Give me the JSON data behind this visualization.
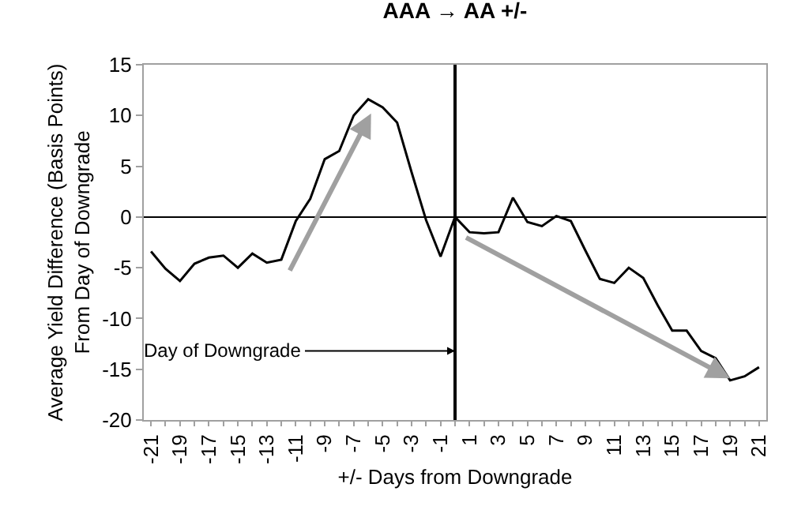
{
  "chart_data": {
    "type": "line",
    "title": "AAA → AA +/-",
    "xlabel": "+/- Days from Downgrade",
    "ylabel": "Average Yield Difference (Basis Points)\nFrom Day of Downgrade",
    "x": [
      -21,
      -20,
      -19,
      -18,
      -17,
      -16,
      -15,
      -14,
      -13,
      -12,
      -11,
      -10,
      -9,
      -8,
      -7,
      -6,
      -5,
      -4,
      -3,
      -2,
      -1,
      0,
      1,
      2,
      3,
      4,
      5,
      6,
      7,
      8,
      9,
      10,
      11,
      12,
      13,
      14,
      15,
      16,
      17,
      18,
      19,
      20,
      21
    ],
    "series": [
      {
        "color": "#000000",
        "values": [
          -3.4,
          -5.1,
          -6.3,
          -4.6,
          -4.0,
          -3.8,
          -5.0,
          -3.6,
          -4.5,
          -4.2,
          -0.4,
          1.8,
          5.7,
          6.5,
          10.0,
          11.6,
          10.8,
          9.3,
          4.4,
          -0.3,
          -3.9,
          0,
          -1.5,
          -1.6,
          -1.5,
          1.9,
          -0.5,
          -0.9,
          0.1,
          -0.4,
          -3.3,
          -6.1,
          -6.5,
          -5.0,
          -6.0,
          -8.7,
          -11.2,
          -11.2,
          -13.2,
          -13.9,
          -16.1,
          -15.7,
          -14.8
        ]
      }
    ],
    "xlim": [
      -21.5,
      21.5
    ],
    "xticks": [
      -21,
      {
        "value": -20,
        "label": null
      },
      -19,
      {
        "value": -18,
        "label": null
      },
      -17,
      {
        "value": -16,
        "label": null
      },
      -15,
      {
        "value": -14,
        "label": null
      },
      -13,
      {
        "value": -12,
        "label": null
      },
      -11,
      {
        "value": -10,
        "label": null
      },
      -9,
      {
        "value": -8,
        "label": null
      },
      -7,
      {
        "value": -6,
        "label": null
      },
      -5,
      {
        "value": -4,
        "label": null
      },
      -3,
      {
        "value": -2,
        "label": null
      },
      -1,
      {
        "value": 0,
        "label": null
      },
      1,
      {
        "value": 2,
        "label": null
      },
      3,
      {
        "value": 4,
        "label": null
      },
      5,
      {
        "value": 6,
        "label": null
      },
      7,
      {
        "value": 8,
        "label": null
      },
      9,
      {
        "value": 10,
        "label": null
      },
      11,
      {
        "value": 12,
        "label": null
      },
      13,
      {
        "value": 14,
        "label": null
      },
      15,
      {
        "value": 16,
        "label": null
      },
      17,
      {
        "value": 18,
        "label": null
      },
      19,
      {
        "value": 20,
        "label": null
      },
      21
    ],
    "ylim": [
      -20,
      15
    ],
    "yticks": [
      -20,
      -15,
      -10,
      -5,
      0,
      5,
      10,
      15
    ],
    "ref_lines": [
      {
        "axis": "x",
        "value": 0,
        "color": "#000000"
      }
    ],
    "annotations": [
      {
        "text": "Day of Downgrade",
        "x": 0,
        "y": -13.2
      }
    ],
    "marker": "none",
    "line_style": "solid"
  }
}
